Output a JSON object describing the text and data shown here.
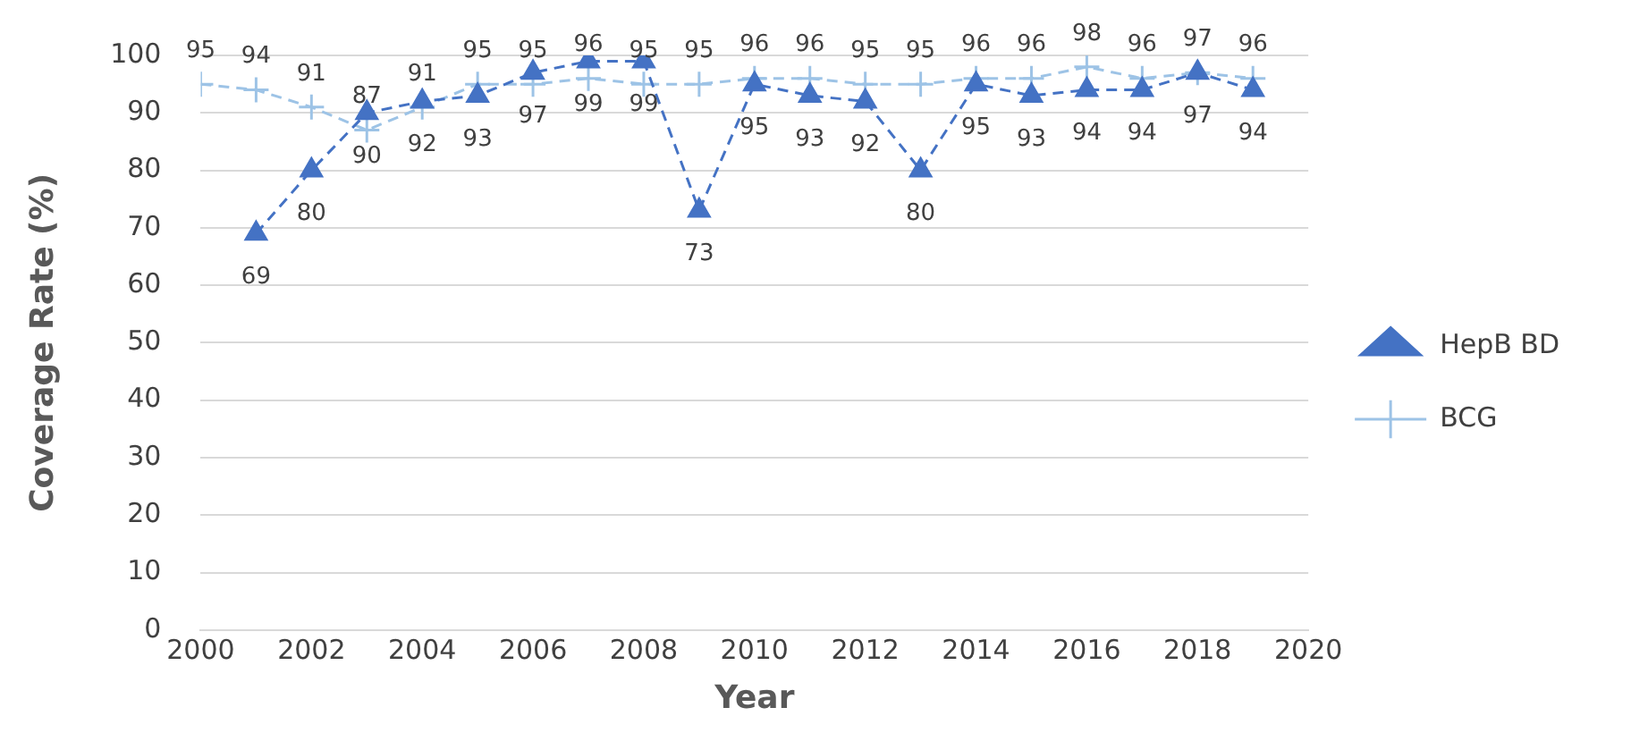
{
  "chart_data": {
    "type": "line",
    "xlabel": "Year",
    "ylabel": "Coverage Rate (%)",
    "x": [
      2000,
      2001,
      2002,
      2003,
      2004,
      2005,
      2006,
      2007,
      2008,
      2009,
      2010,
      2011,
      2012,
      2013,
      2014,
      2015,
      2016,
      2017,
      2018,
      2019
    ],
    "series": [
      {
        "name": "HepB BD",
        "color": "#4472c4",
        "marker": "triangle",
        "line_style": "dashed",
        "values": [
          null,
          69,
          80,
          90,
          92,
          93,
          97,
          99,
          99,
          73,
          95,
          93,
          92,
          80,
          95,
          93,
          94,
          94,
          97,
          94
        ]
      },
      {
        "name": "BCG",
        "color": "#9dc3e6",
        "marker": "cross",
        "line_style": "dashed",
        "values": [
          95,
          94,
          91,
          87,
          91,
          95,
          95,
          96,
          95,
          95,
          96,
          96,
          95,
          95,
          96,
          96,
          98,
          96,
          97,
          96
        ]
      }
    ],
    "xlim": [
      2000,
      2020
    ],
    "xticks": [
      2000,
      2002,
      2004,
      2006,
      2008,
      2010,
      2012,
      2014,
      2016,
      2018,
      2020
    ],
    "ylim": [
      0,
      100
    ],
    "yticks": [
      0,
      10,
      20,
      30,
      40,
      50,
      60,
      70,
      80,
      90,
      100
    ],
    "grid": "y",
    "legend": "right",
    "data_labels": true
  }
}
